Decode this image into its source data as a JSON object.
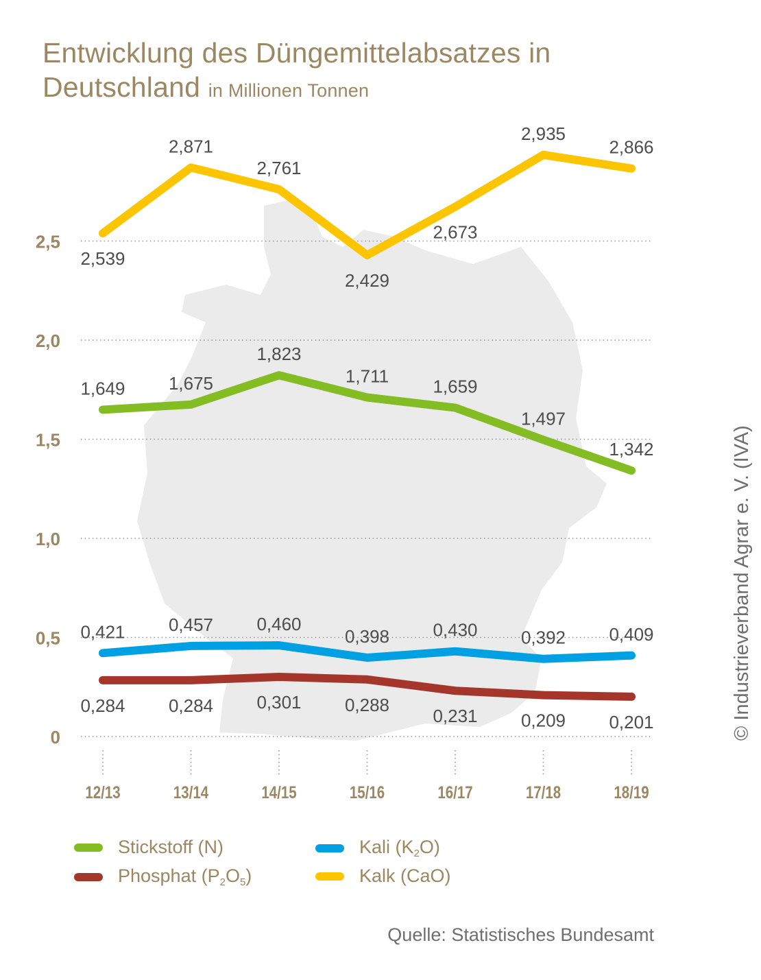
{
  "title": {
    "line1": "Entwicklung des Düngemittelabsatzes in",
    "line2": "Deutschland",
    "unit": "in Millionen Tonnen"
  },
  "chart_data": {
    "type": "line",
    "categories": [
      "12/13",
      "13/14",
      "14/15",
      "15/16",
      "16/17",
      "17/18",
      "18/19"
    ],
    "y_ticks": [
      {
        "value": 0,
        "label": "0"
      },
      {
        "value": 0.5,
        "label": "0,5"
      },
      {
        "value": 1.0,
        "label": "1,0"
      },
      {
        "value": 1.5,
        "label": "1,5"
      },
      {
        "value": 2.0,
        "label": "2,0"
      },
      {
        "value": 2.5,
        "label": "2,5"
      }
    ],
    "ylim": [
      0,
      3.0
    ],
    "grid": true,
    "series": [
      {
        "name": "Kalk (CaO)",
        "color": "#fdc400",
        "values": [
          2.539,
          2.871,
          2.761,
          2.429,
          2.673,
          2.935,
          2.866
        ],
        "labels": [
          "2,539",
          "2,871",
          "2,761",
          "2,429",
          "2,673",
          "2,935",
          "2,866"
        ],
        "label_pos": [
          "below",
          "above",
          "above",
          "below",
          "below",
          "above",
          "above"
        ]
      },
      {
        "name": "Stickstoff (N)",
        "color": "#84bc23",
        "values": [
          1.649,
          1.675,
          1.823,
          1.711,
          1.659,
          1.497,
          1.342
        ],
        "labels": [
          "1,649",
          "1,675",
          "1,823",
          "1,711",
          "1,659",
          "1,497",
          "1,342"
        ],
        "label_pos": [
          "above",
          "above",
          "above",
          "above",
          "above",
          "above",
          "above"
        ]
      },
      {
        "name": "Kali (K2O)",
        "color": "#00a0e3",
        "values": [
          0.421,
          0.457,
          0.46,
          0.398,
          0.43,
          0.392,
          0.409
        ],
        "labels": [
          "0,421",
          "0,457",
          "0,460",
          "0,398",
          "0,430",
          "0,392",
          "0,409"
        ],
        "label_pos": [
          "above",
          "above",
          "above",
          "above",
          "above",
          "above",
          "above"
        ]
      },
      {
        "name": "Phosphat (P2O5)",
        "color": "#a5362b",
        "values": [
          0.284,
          0.284,
          0.301,
          0.288,
          0.231,
          0.209,
          0.201
        ],
        "labels": [
          "0,284",
          "0,284",
          "0,301",
          "0,288",
          "0,231",
          "0,209",
          "0,201"
        ],
        "label_pos": [
          "below",
          "below",
          "below",
          "below",
          "below",
          "below",
          "below"
        ]
      }
    ]
  },
  "legend": {
    "stickstoff": "Stickstoff (N)",
    "kali_pre": "Kali (K",
    "kali_sub": "2",
    "kali_post": "O)",
    "phosphat_pre": "Phosphat (P",
    "phosphat_sub1": "2",
    "phosphat_mid": "O",
    "phosphat_sub2": "5",
    "phosphat_post": ")",
    "kalk": "Kalk (CaO)"
  },
  "copyright": "© Industrieverband Agrar e. V. (IVA)",
  "source": "Quelle: Statistisches Bundesamt",
  "colors": {
    "title": "#9b8762",
    "axis_label": "#9b8762",
    "value_label": "#4d4d4d",
    "grid": "#9a9a9a",
    "map": "#ebebeb"
  }
}
